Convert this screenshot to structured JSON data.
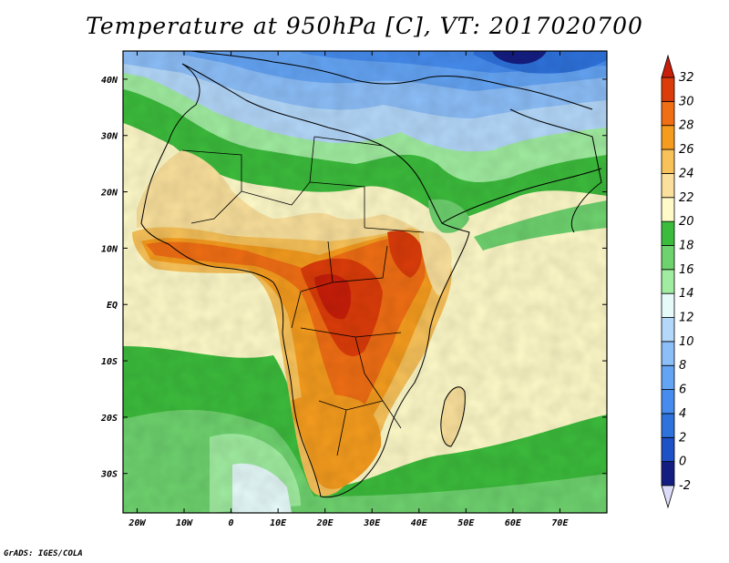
{
  "title": "Temperature at 950hPa [C], VT: 2017020700",
  "credit": "GrADS: IGES/COLA",
  "map": {
    "lon_range": [
      -23,
      80
    ],
    "lat_range": [
      -37,
      45
    ],
    "lon_ticks": [
      {
        "value": -20,
        "label": "20W"
      },
      {
        "value": -10,
        "label": "10W"
      },
      {
        "value": 0,
        "label": "0"
      },
      {
        "value": 10,
        "label": "10E"
      },
      {
        "value": 20,
        "label": "20E"
      },
      {
        "value": 30,
        "label": "30E"
      },
      {
        "value": 40,
        "label": "40E"
      },
      {
        "value": 50,
        "label": "50E"
      },
      {
        "value": 60,
        "label": "60E"
      },
      {
        "value": 70,
        "label": "70E"
      }
    ],
    "lat_ticks": [
      {
        "value": 40,
        "label": "40N"
      },
      {
        "value": 30,
        "label": "30N"
      },
      {
        "value": 20,
        "label": "20N"
      },
      {
        "value": 10,
        "label": "10N"
      },
      {
        "value": 0,
        "label": "EQ"
      },
      {
        "value": -10,
        "label": "10S"
      },
      {
        "value": -20,
        "label": "20S"
      },
      {
        "value": -30,
        "label": "30S"
      }
    ]
  },
  "colorbar": {
    "levels": [
      -2,
      0,
      2,
      4,
      6,
      8,
      10,
      12,
      14,
      16,
      18,
      20,
      22,
      24,
      26,
      28,
      30,
      32
    ],
    "labels": [
      "-2",
      "0",
      "2",
      "4",
      "6",
      "8",
      "10",
      "12",
      "14",
      "16",
      "18",
      "20",
      "22",
      "24",
      "26",
      "28",
      "30",
      "32"
    ],
    "colors": [
      "#dcdcfa",
      "#141e82",
      "#1e50c8",
      "#2e72dc",
      "#468cee",
      "#64a4f4",
      "#8cbef8",
      "#b4d8fa",
      "#e6fafa",
      "#a0eca0",
      "#6ed26e",
      "#3cbc3c",
      "#fffac8",
      "#fae09c",
      "#f8c25a",
      "#f59c1e",
      "#f06e14",
      "#dc3c0a",
      "#c81e0a"
    ]
  }
}
